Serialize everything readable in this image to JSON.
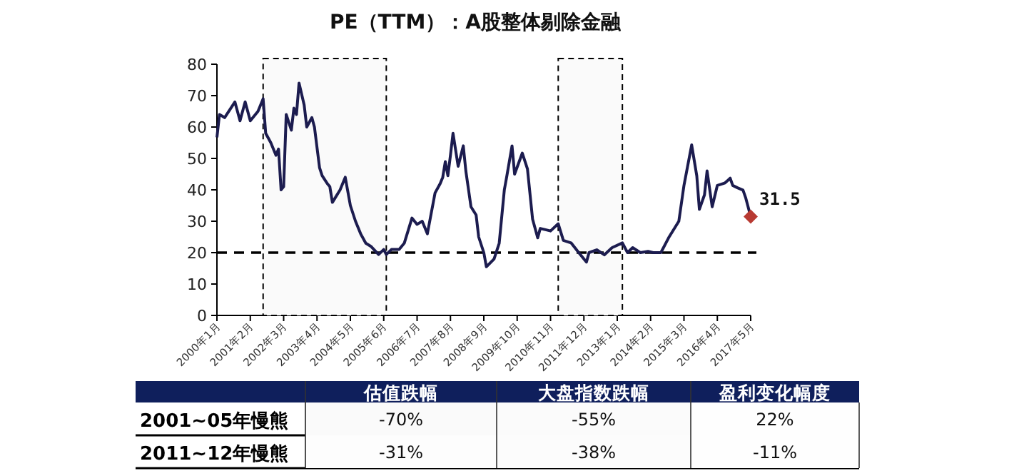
{
  "chart_data": [
    {
      "type": "line",
      "title": "PE（TTM）：A股整体剔除金融",
      "xlim": [
        "2000-01",
        "2017-05"
      ],
      "xticks": [
        {
          "value": "2000-01",
          "label": "2000年1月"
        },
        {
          "value": "2001-02",
          "label": "2001年2月"
        },
        {
          "value": "2002-03",
          "label": "2002年3月"
        },
        {
          "value": "2003-04",
          "label": "2003年4月"
        },
        {
          "value": "2004-05",
          "label": "2004年5月"
        },
        {
          "value": "2005-06",
          "label": "2005年6月"
        },
        {
          "value": "2006-07",
          "label": "2006年7月"
        },
        {
          "value": "2007-08",
          "label": "2007年8月"
        },
        {
          "value": "2008-09",
          "label": "2008年9月"
        },
        {
          "value": "2009-10",
          "label": "2009年10月"
        },
        {
          "value": "2010-11",
          "label": "2010年11月"
        },
        {
          "value": "2011-12",
          "label": "2011年12月"
        },
        {
          "value": "2013-01",
          "label": "2013年1月"
        },
        {
          "value": "2014-02",
          "label": "2014年2月"
        },
        {
          "value": "2015-03",
          "label": "2015年3月"
        },
        {
          "value": "2016-04",
          "label": "2016年4月"
        },
        {
          "value": "2017-05",
          "label": "2017年5月"
        }
      ],
      "ylim": [
        0,
        80
      ],
      "yticks": [
        0,
        10,
        20,
        30,
        40,
        50,
        60,
        70,
        80
      ],
      "grid": false,
      "ref_lines": [
        {
          "axis": "y",
          "value": 20,
          "color": "#000000",
          "line_style": "dashed"
        }
      ],
      "bands": [
        {
          "axis": "x",
          "from": "2001-07",
          "to": "2005-07",
          "color": "#fafafa"
        },
        {
          "axis": "x",
          "from": "2011-02",
          "to": "2013-03",
          "color": "#fafafa"
        }
      ],
      "series": [
        {
          "type": "line",
          "color": "#1c1c4f",
          "marker": "none",
          "line_style": "solid",
          "x": [
            "2000-01",
            "2000-02",
            "2000-04",
            "2000-08",
            "2000-10",
            "2000-12",
            "2001-02",
            "2001-05",
            "2001-07",
            "2001-08",
            "2001-10",
            "2001-12",
            "2002-01",
            "2002-02",
            "2002-03",
            "2002-04",
            "2002-06",
            "2002-07",
            "2002-08",
            "2002-09",
            "2002-11",
            "2002-12",
            "2003-02",
            "2003-03",
            "2003-05",
            "2003-06",
            "2003-08",
            "2003-09",
            "2003-10",
            "2004-01",
            "2004-03",
            "2004-05",
            "2004-07",
            "2004-09",
            "2004-11",
            "2005-01",
            "2005-04",
            "2005-06",
            "2005-07",
            "2005-09",
            "2005-12",
            "2006-02",
            "2006-05",
            "2006-07",
            "2006-09",
            "2006-11",
            "2007-02",
            "2007-04",
            "2007-05",
            "2007-06",
            "2007-07",
            "2007-08",
            "2007-09",
            "2007-11",
            "2008-01",
            "2008-02",
            "2008-04",
            "2008-06",
            "2008-07",
            "2008-09",
            "2008-10",
            "2009-01",
            "2009-03",
            "2009-05",
            "2009-06",
            "2009-08",
            "2009-09",
            "2009-12",
            "2010-02",
            "2010-04",
            "2010-06",
            "2010-07",
            "2010-11",
            "2011-02",
            "2011-04",
            "2011-07",
            "2011-10",
            "2012-01",
            "2012-02",
            "2012-05",
            "2012-08",
            "2012-11",
            "2013-03",
            "2013-05",
            "2013-07",
            "2013-10",
            "2014-01",
            "2014-03",
            "2014-06",
            "2014-09",
            "2015-01",
            "2015-03",
            "2015-06",
            "2015-08",
            "2015-09",
            "2015-11",
            "2015-12",
            "2016-02",
            "2016-04",
            "2016-07",
            "2016-09",
            "2016-10",
            "2016-12",
            "2017-02",
            "2017-03",
            "2017-05"
          ],
          "values": [
            56.7,
            64,
            63,
            68,
            62,
            68,
            62,
            65,
            69,
            58,
            55,
            51,
            53,
            40,
            41,
            64,
            59,
            66,
            64,
            74,
            67,
            60,
            63,
            60,
            47,
            44.5,
            42,
            41,
            36,
            40,
            44,
            35,
            30,
            26,
            23,
            22,
            19.4,
            21,
            19.4,
            21,
            21,
            23,
            31,
            29,
            30,
            26,
            39,
            42,
            44,
            49,
            44.5,
            51,
            58,
            47.5,
            54,
            46,
            34.6,
            32,
            25,
            20,
            15.5,
            18,
            23,
            40,
            44.5,
            54,
            45,
            51.7,
            46.7,
            30.7,
            24.7,
            27.7,
            26.9,
            29.2,
            23.9,
            23.1,
            20,
            17,
            20,
            20.9,
            19.3,
            21.6,
            23.1,
            20,
            21.6,
            20,
            20.4,
            20,
            20,
            24.7,
            30,
            41.4,
            54.3,
            44.4,
            33.8,
            38.4,
            46,
            34.6,
            41.4,
            42.2,
            43.7,
            41.4,
            40.6,
            39.9,
            37.6,
            31.5
          ]
        },
        {
          "type": "scatter",
          "color": "#b83a32",
          "marker": "diamond",
          "x": [
            "2017-05"
          ],
          "values": [
            31.5
          ],
          "value_labels": [
            "31.5"
          ]
        }
      ]
    },
    {
      "type": "heatmap",
      "categories": [
        "估值跌幅",
        "大盘指数跌幅",
        "盈利变化幅度"
      ],
      "y_categories": [
        "2001~05年慢熊",
        "2011~12年慢熊"
      ],
      "cells": [
        [
          -70,
          -55,
          22
        ],
        [
          -31,
          -38,
          -11
        ]
      ],
      "cell_labels": [
        [
          "-70%",
          "-55%",
          "22%"
        ],
        [
          "-31%",
          "-38%",
          "-11%"
        ]
      ]
    }
  ]
}
